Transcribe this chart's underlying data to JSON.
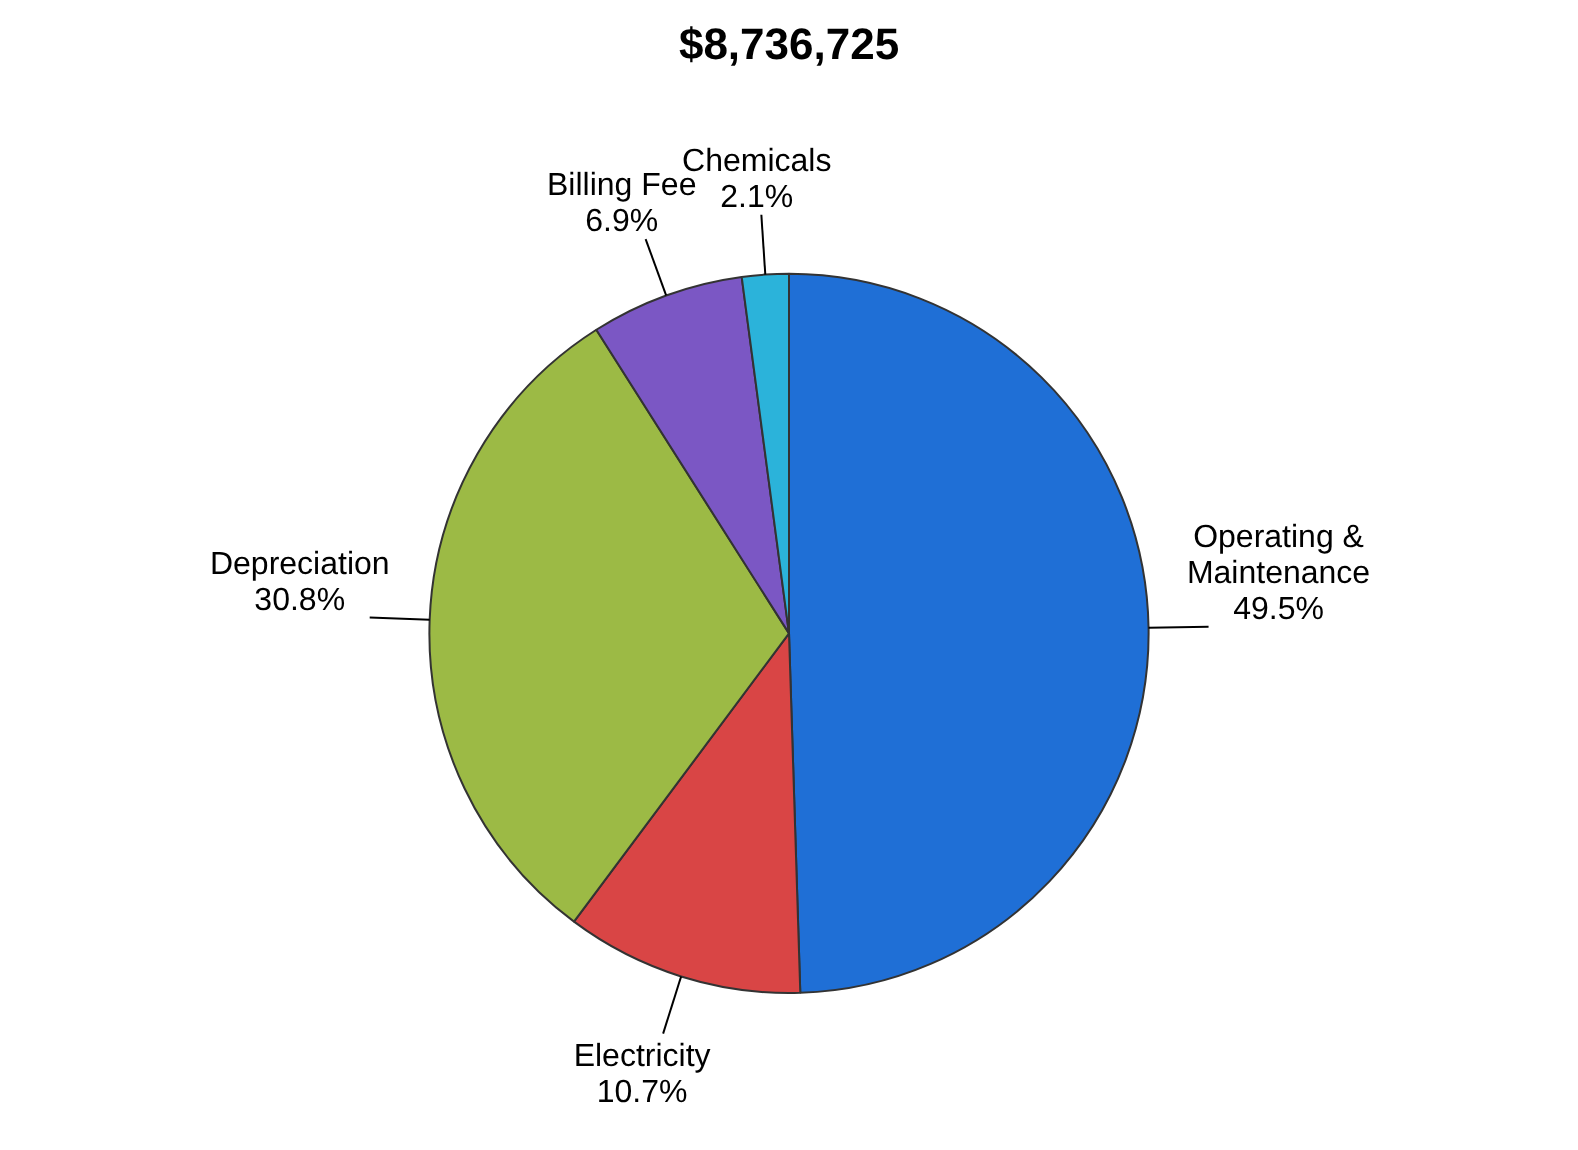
{
  "chart_data": {
    "type": "pie",
    "title": "$8,736,725",
    "categories": [
      "Operating & Maintenance",
      "Electricity",
      "Depreciation",
      "Billing Fee",
      "Chemicals"
    ],
    "values": [
      49.5,
      10.7,
      30.8,
      6.9,
      2.1
    ],
    "colors": [
      "#1f6fd6",
      "#d94545",
      "#9cba45",
      "#7b57c4",
      "#2bb3da"
    ],
    "value_labels": [
      "49.5%",
      "10.7%",
      "30.8%",
      "6.9%",
      "2.1%"
    ],
    "legend": false
  }
}
